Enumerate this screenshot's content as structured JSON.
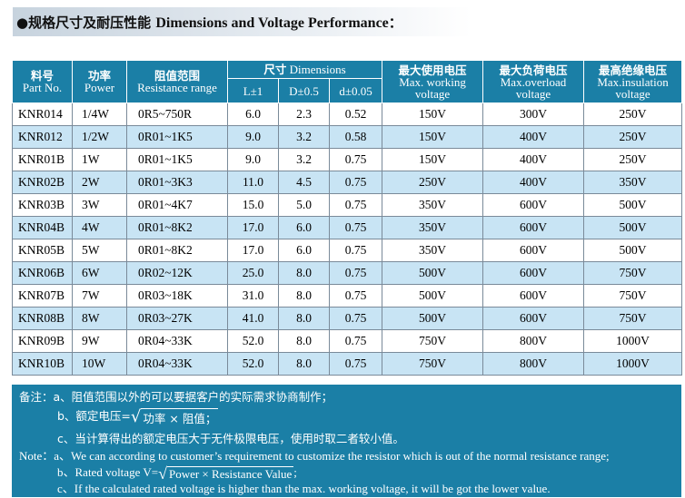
{
  "title": {
    "bullet": "●",
    "cn": "规格尺寸及耐压性能",
    "en": "Dimensions and Voltage Performance",
    "colon": "："
  },
  "table": {
    "headers": {
      "part_no": {
        "cn": "料号",
        "en": "Part No."
      },
      "power": {
        "cn": "功率",
        "en": "Power"
      },
      "resistance": {
        "cn": "阻值范围",
        "en": "Resistance range"
      },
      "dimensions": {
        "cn": "尺寸",
        "en": "Dimensions"
      },
      "L": "L±1",
      "D": "D±0.5",
      "d": "d±0.05",
      "max_working": {
        "cn": "最大使用电压",
        "en1": "Max. working",
        "en2": "voltage"
      },
      "max_overload": {
        "cn": "最大负荷电压",
        "en1": "Max.overload",
        "en2": "voltage"
      },
      "max_insulation": {
        "cn": "最高绝缘电压",
        "en1": "Max.insulation",
        "en2": "voltage"
      }
    },
    "rows": [
      {
        "part": "KNR014",
        "power": "1/4W",
        "range": "0R5~750R",
        "L": "6.0",
        "D": "2.3",
        "d": "0.52",
        "working": "150V",
        "overload": "300V",
        "insulation": "250V"
      },
      {
        "part": "KNR012",
        "power": "1/2W",
        "range": "0R01~1K5",
        "L": "9.0",
        "D": "3.2",
        "d": "0.58",
        "working": "150V",
        "overload": "400V",
        "insulation": "250V"
      },
      {
        "part": "KNR01B",
        "power": "1W",
        "range": "0R01~1K5",
        "L": "9.0",
        "D": "3.2",
        "d": "0.75",
        "working": "150V",
        "overload": "400V",
        "insulation": "250V"
      },
      {
        "part": "KNR02B",
        "power": "2W",
        "range": "0R01~3K3",
        "L": "11.0",
        "D": "4.5",
        "d": "0.75",
        "working": "250V",
        "overload": "400V",
        "insulation": "350V"
      },
      {
        "part": "KNR03B",
        "power": "3W",
        "range": "0R01~4K7",
        "L": "15.0",
        "D": "5.0",
        "d": "0.75",
        "working": "350V",
        "overload": "600V",
        "insulation": "500V"
      },
      {
        "part": "KNR04B",
        "power": "4W",
        "range": "0R01~8K2",
        "L": "17.0",
        "D": "6.0",
        "d": "0.75",
        "working": "350V",
        "overload": "600V",
        "insulation": "500V"
      },
      {
        "part": "KNR05B",
        "power": "5W",
        "range": "0R01~8K2",
        "L": "17.0",
        "D": "6.0",
        "d": "0.75",
        "working": "350V",
        "overload": "600V",
        "insulation": "500V"
      },
      {
        "part": "KNR06B",
        "power": "6W",
        "range": "0R02~12K",
        "L": "25.0",
        "D": "8.0",
        "d": "0.75",
        "working": "500V",
        "overload": "600V",
        "insulation": "750V"
      },
      {
        "part": "KNR07B",
        "power": "7W",
        "range": "0R03~18K",
        "L": "31.0",
        "D": "8.0",
        "d": "0.75",
        "working": "500V",
        "overload": "600V",
        "insulation": "750V"
      },
      {
        "part": "KNR08B",
        "power": "8W",
        "range": "0R03~27K",
        "L": "41.0",
        "D": "8.0",
        "d": "0.75",
        "working": "500V",
        "overload": "600V",
        "insulation": "750V"
      },
      {
        "part": "KNR09B",
        "power": "9W",
        "range": "0R04~33K",
        "L": "52.0",
        "D": "8.0",
        "d": "0.75",
        "working": "750V",
        "overload": "800V",
        "insulation": "1000V"
      },
      {
        "part": "KNR10B",
        "power": "10W",
        "range": "0R04~33K",
        "L": "52.0",
        "D": "8.0",
        "d": "0.75",
        "working": "750V",
        "overload": "800V",
        "insulation": "1000V"
      }
    ]
  },
  "notes": {
    "cn_prefix": "备注：",
    "cn_a": "a、阻值范围以外的可以要据客户的实际需求协商制作；",
    "cn_b_pre": "b、额定电压=",
    "cn_b_root": "功率 × 阻值；",
    "cn_c": "c、当计算得出的额定电压大于无件极限电压，使用时取二者较小值。",
    "en_prefix": "Note：",
    "en_a": "a、We can according to customer’s requirement to customize the resistor which is out of the normal resistance range;",
    "en_b_pre": "b、Rated voltage V=",
    "en_b_root": "Power × Resistance Value",
    "en_b_post": ";",
    "en_c": "c、If the calculated rated voltage is higher than the max. working voltage, it will be got the lower value."
  },
  "colors": {
    "header_bg": "#1b7fa6",
    "alt_row": "#c8e4f4",
    "notes_bg": "#1b7fa6"
  }
}
